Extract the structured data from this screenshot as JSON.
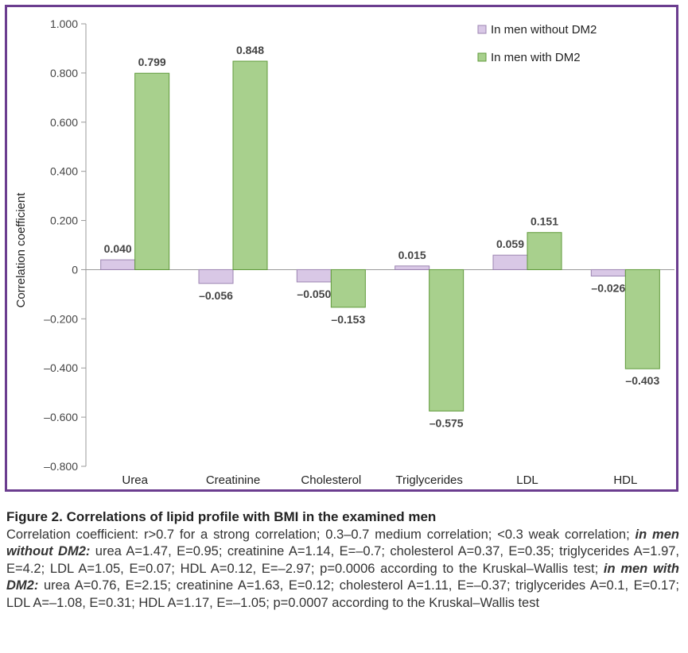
{
  "colors": {
    "frame": "#6b3d8f",
    "series_without": "#d9c8e6",
    "series_without_stroke": "#9c85b2",
    "series_with": "#a8d08d",
    "series_with_stroke": "#5f9a3a"
  },
  "chart_data": {
    "type": "bar",
    "categories": [
      "Urea",
      "Creatinine",
      "Cholesterol",
      "Triglycerides",
      "LDL",
      "HDL"
    ],
    "series": [
      {
        "name": "In men without DM2",
        "values": [
          0.04,
          -0.056,
          -0.05,
          0.015,
          0.059,
          -0.026
        ],
        "labels": [
          "0.040",
          "–0.056",
          "–0.050",
          "0.015",
          "0.059",
          "–0.026"
        ]
      },
      {
        "name": "In men with DM2",
        "values": [
          0.799,
          0.848,
          -0.153,
          -0.575,
          0.151,
          -0.403
        ],
        "labels": [
          "0.799",
          "0.848",
          "–0.153",
          "–0.575",
          "0.151",
          "–0.403"
        ]
      }
    ],
    "ylabel": "Correlation coefficient",
    "xlabel": "",
    "ylim": [
      -0.8,
      1.0
    ],
    "yticks": [
      1.0,
      0.8,
      0.6,
      0.4,
      0.2,
      0,
      -0.2,
      -0.4,
      -0.6,
      -0.8
    ],
    "ytick_labels": [
      "1.000",
      "0.800",
      "0.600",
      "0.400",
      "0.200",
      "0",
      "–0.200",
      "–0.400",
      "–0.600",
      "–0.800"
    ],
    "legend_position": "top-right",
    "grid": false
  },
  "caption": {
    "title": "Figure 2. Correlations of lipid profile with BMI in the examined men",
    "intro": "Correlation coefficient: r>0.7 for a strong correlation; 0.3–0.7 medium correlation; <0.3 weak correlation; ",
    "group1_label": "in men without DM2:",
    "group1_text": " urea A=1.47, E=0.95; creatinine A=1.14, E=–0.7; cholesterol A=0.37, E=0.35; triglycerides A=1.97, E=4.2; LDL A=1.05, E=0.07; HDL A=0.12, E=–2.97; p=0.0006 according to the Kruskal–Wallis test; ",
    "group2_label": "in men with DM2:",
    "group2_text": " urea A=0.76, E=2.15; creatinine A=1.63, E=0.12; cholesterol A=1.11, E=–0.37; triglycerides A=0.1, E=0.17; LDL A=–1.08, E=0.31; HDL A=1.17, E=–1.05; p=0.0007 according to the Kruskal–Wallis test"
  }
}
